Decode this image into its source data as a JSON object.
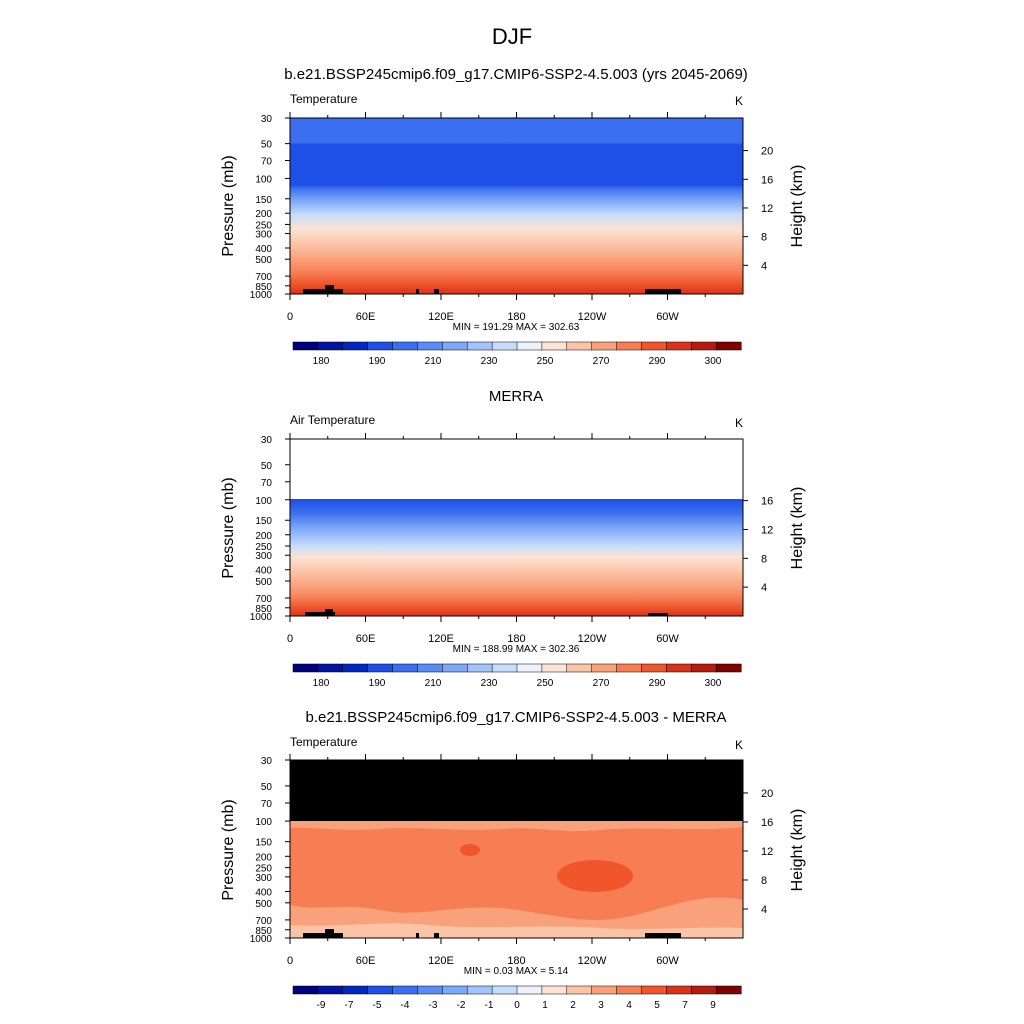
{
  "page_title": "DJF",
  "chart_data": [
    {
      "type": "heatmap",
      "title": "b.e21.BSSP245cmip6.f09_g17.CMIP6-SSP2-4.5.003 (yrs 2045-2069)",
      "left_label": "Temperature",
      "units": "K",
      "ylabel": "Pressure (mb)",
      "y2label": "Height (km)",
      "yticks": [
        30,
        50,
        70,
        100,
        150,
        200,
        250,
        300,
        400,
        500,
        700,
        850,
        1000
      ],
      "y2ticks": [
        4,
        8,
        12,
        16,
        20
      ],
      "xticks": [
        "0",
        "60E",
        "120E",
        "180",
        "120W",
        "60W"
      ],
      "stats": "MIN = 191.29  MAX = 302.63",
      "colorbar": {
        "labels": [
          "180",
          "190",
          "210",
          "230",
          "250",
          "270",
          "290",
          "300"
        ]
      }
    },
    {
      "type": "heatmap",
      "title": "MERRA",
      "left_label": "Air Temperature",
      "units": "K",
      "ylabel": "Pressure (mb)",
      "y2label": "Height (km)",
      "yticks": [
        30,
        50,
        70,
        100,
        150,
        200,
        250,
        300,
        400,
        500,
        700,
        850,
        1000
      ],
      "y2ticks": [
        4,
        8,
        12,
        16
      ],
      "xticks": [
        "0",
        "60E",
        "120E",
        "180",
        "120W",
        "60W"
      ],
      "stats": "MIN = 188.99  MAX = 302.36",
      "colorbar": {
        "labels": [
          "180",
          "190",
          "210",
          "230",
          "250",
          "270",
          "290",
          "300"
        ]
      }
    },
    {
      "type": "heatmap",
      "title": "b.e21.BSSP245cmip6.f09_g17.CMIP6-SSP2-4.5.003 - MERRA",
      "left_label": "Temperature",
      "units": "K",
      "ylabel": "Pressure (mb)",
      "y2label": "Height (km)",
      "yticks": [
        30,
        50,
        70,
        100,
        150,
        200,
        250,
        300,
        400,
        500,
        700,
        850,
        1000
      ],
      "y2ticks": [
        4,
        8,
        12,
        16,
        20
      ],
      "xticks": [
        "0",
        "60E",
        "120E",
        "180",
        "120W",
        "60W"
      ],
      "stats": "MIN =   0.03  MAX =   5.14",
      "colorbar": {
        "labels": [
          "-9",
          "-7",
          "-5",
          "-4",
          "-3",
          "-2",
          "-1",
          "0",
          "1",
          "2",
          "3",
          "4",
          "5",
          "7",
          "9"
        ]
      }
    }
  ],
  "colors": {
    "scale16": [
      "#00007f",
      "#0014a0",
      "#0028c0",
      "#1e4fe6",
      "#3c6fef",
      "#5a8cf5",
      "#7ea8f8",
      "#a2c3fb",
      "#c6dcfd",
      "#eef2fb",
      "#fde3d3",
      "#fbc4a6",
      "#f9a17b",
      "#f77d53",
      "#f0552c",
      "#d9331a",
      "#b51c0f",
      "#800000"
    ],
    "black": "#000000"
  }
}
